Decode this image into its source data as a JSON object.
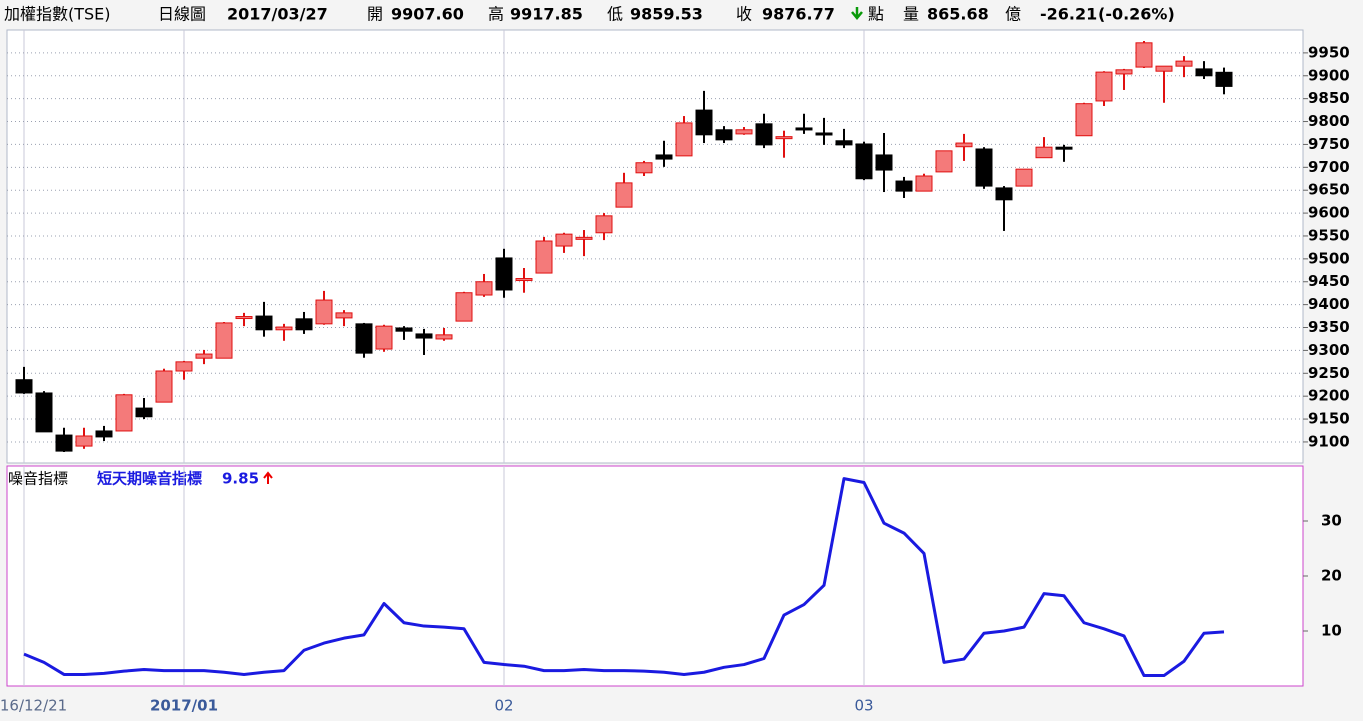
{
  "header": {
    "title": "加權指數(TSE)",
    "period": "日線圖",
    "date": "2017/03/27",
    "fields": [
      {
        "label": "開",
        "value": "9907.60"
      },
      {
        "label": "高",
        "value": "9917.85"
      },
      {
        "label": "低",
        "value": "9859.53"
      },
      {
        "label": "收",
        "value": "9876.77"
      }
    ],
    "unit": "點",
    "volume_label": "量",
    "volume": "865.68",
    "volume_unit": "億",
    "change": "-26.21",
    "change_pct": "(-0.26%)"
  },
  "chart_data": [
    {
      "type": "candlestick",
      "up_color": "#f47a7a",
      "up_edge": "#e01010",
      "down_color": "#000000",
      "ylim": [
        9054,
        10000
      ],
      "yticks": [
        9100,
        9150,
        9200,
        9250,
        9300,
        9350,
        9400,
        9450,
        9500,
        9550,
        9600,
        9650,
        9700,
        9750,
        9800,
        9850,
        9900,
        9950
      ],
      "grid": true,
      "open": [
        9236,
        9207,
        9115,
        9091,
        9124,
        9124,
        9174,
        9187,
        9255,
        9283,
        9283,
        9372,
        9375,
        9345,
        9369,
        9358,
        9371,
        9358,
        9303,
        9349,
        9336,
        9325,
        9364,
        9421,
        9502,
        9455,
        9469,
        9528,
        9545,
        9557,
        9613,
        9688,
        9727,
        9725,
        9825,
        9782,
        9773,
        9795,
        9765,
        9786,
        9775,
        9758,
        9751,
        9727,
        9670,
        9648,
        9690,
        9745,
        9740,
        9655,
        9659,
        9721,
        9744,
        9769,
        9845,
        9904,
        9919,
        9910,
        9921,
        9915,
        9907.6
      ],
      "high": [
        9264,
        9211,
        9131,
        9131,
        9135,
        9205,
        9196,
        9260,
        9277,
        9301,
        9362,
        9382,
        9406,
        9358,
        9384,
        9430,
        9388,
        9360,
        9356,
        9353,
        9347,
        9349,
        9428,
        9467,
        9522,
        9480,
        9548,
        9557,
        9563,
        9600,
        9688,
        9714,
        9758,
        9812,
        9867,
        9790,
        9788,
        9817,
        9780,
        9817,
        9808,
        9784,
        9756,
        9775,
        9679,
        9686,
        9736,
        9773,
        9744,
        9659,
        9696,
        9766,
        9749,
        9841,
        9910,
        9915,
        9976,
        9921,
        9943,
        9932,
        9917.85
      ],
      "low": [
        9205,
        9122,
        9078,
        9085,
        9102,
        9124,
        9150,
        9187,
        9236,
        9270,
        9283,
        9353,
        9330,
        9321,
        9336,
        9356,
        9353,
        9284,
        9297,
        9323,
        9290,
        9321,
        9364,
        9417,
        9415,
        9426,
        9469,
        9513,
        9506,
        9541,
        9613,
        9681,
        9701,
        9725,
        9753,
        9753,
        9771,
        9742,
        9721,
        9773,
        9749,
        9742,
        9672,
        9646,
        9633,
        9648,
        9690,
        9714,
        9653,
        9561,
        9659,
        9721,
        9712,
        9769,
        9834,
        9869,
        9917,
        9841,
        9897,
        9893,
        9859.53
      ],
      "close": [
        9207,
        9122,
        9080,
        9113,
        9111,
        9203,
        9155,
        9255,
        9275,
        9292,
        9360,
        9374,
        9345,
        9351,
        9345,
        9410,
        9382,
        9294,
        9353,
        9342,
        9327,
        9334,
        9426,
        9450,
        9432,
        9457,
        9539,
        9554,
        9547,
        9594,
        9666,
        9710,
        9718,
        9797,
        9771,
        9760,
        9782,
        9749,
        9767,
        9782,
        9771,
        9749,
        9675,
        9694,
        9648,
        9681,
        9736,
        9753,
        9659,
        9629,
        9696,
        9744,
        9742,
        9839,
        9908,
        9913,
        9972,
        9921,
        9932,
        9900,
        9876.77
      ]
    },
    {
      "type": "line",
      "title": "噪音指標",
      "categories": [
        "2016/12/21",
        null,
        null,
        null,
        null,
        null,
        null,
        null,
        "2017/01",
        null,
        null,
        null,
        null,
        null,
        null,
        null,
        null,
        null,
        null,
        null,
        null,
        null,
        null,
        null,
        "02",
        null,
        null,
        null,
        null,
        null,
        null,
        null,
        null,
        null,
        null,
        null,
        null,
        null,
        null,
        null,
        null,
        null,
        "03",
        null,
        null,
        null,
        null,
        null,
        null,
        null,
        null,
        null,
        null,
        null,
        null,
        null,
        null,
        null,
        null,
        null,
        null
      ],
      "ylim": [
        0,
        40
      ],
      "yticks": [
        10,
        20,
        30
      ],
      "series": [
        {
          "name": "短天期噪音指標",
          "color": "#1a1ae0",
          "values": [
            5.8,
            4.3,
            2.1,
            2.1,
            2.3,
            2.7,
            3.0,
            2.8,
            2.8,
            2.8,
            2.5,
            2.1,
            2.5,
            2.8,
            6.5,
            7.8,
            8.7,
            9.3,
            15.0,
            11.5,
            10.9,
            10.7,
            10.4,
            4.3,
            3.9,
            3.6,
            2.8,
            2.8,
            3.0,
            2.8,
            2.8,
            2.7,
            2.5,
            2.1,
            2.5,
            3.4,
            3.9,
            5.0,
            12.9,
            14.8,
            18.3,
            37.7,
            37.0,
            29.6,
            27.8,
            24.1,
            4.3,
            4.9,
            9.6,
            10.0,
            10.7,
            16.8,
            16.4,
            11.5,
            10.4,
            9.1,
            1.9,
            1.9,
            4.5,
            9.6,
            9.85
          ]
        }
      ]
    }
  ]
}
